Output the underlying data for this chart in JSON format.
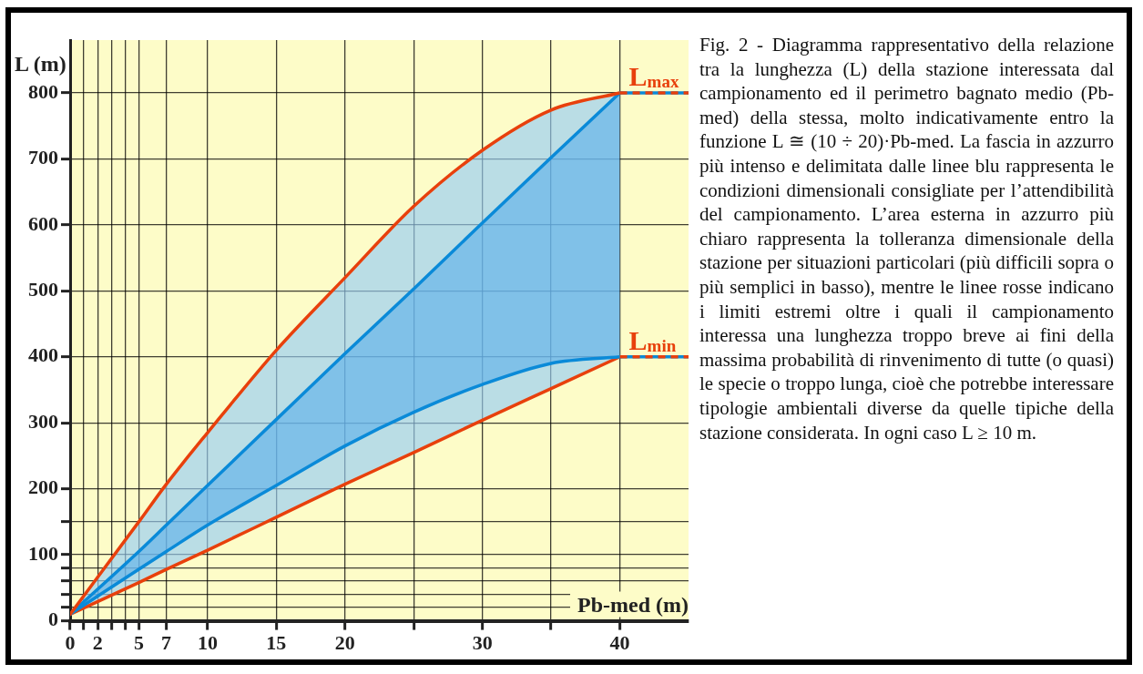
{
  "chart_data": {
    "type": "line",
    "xlabel": "Pb-med (m)",
    "ylabel": "L (m)",
    "xlim": [
      0,
      45
    ],
    "xticks": [
      0,
      {
        "value": 1,
        "label": null
      },
      2,
      {
        "value": 3,
        "label": null
      },
      {
        "value": 4,
        "label": null
      },
      5,
      7,
      10,
      15,
      20,
      {
        "value": 25,
        "label": null
      },
      30,
      {
        "value": 35,
        "label": null
      },
      40
    ],
    "ylim": [
      0,
      880
    ],
    "yticks": [
      0,
      {
        "value": 20,
        "label": null
      },
      {
        "value": 40,
        "label": null
      },
      {
        "value": 60,
        "label": null
      },
      {
        "value": 80,
        "label": null
      },
      100,
      {
        "value": 150,
        "label": null
      },
      200,
      300,
      400,
      500,
      600,
      700,
      800
    ],
    "grid": true,
    "legend": false,
    "marker": "none",
    "x": [
      0,
      5,
      7,
      10,
      15,
      20,
      25,
      30,
      35,
      40
    ],
    "series": [
      {
        "color": "#e8400c",
        "values": [
          10,
          150,
          207,
          285,
          410,
          520,
          628,
          713,
          774,
          800
        ]
      },
      {
        "color": "#0a8ad8",
        "values": [
          10,
          105,
          145,
          205,
          305,
          405,
          503,
          603,
          702,
          800
        ]
      },
      {
        "color": "#0a8ad8",
        "values": [
          10,
          78,
          105,
          145,
          205,
          265,
          316,
          358,
          390,
          400
        ]
      },
      {
        "color": "#e8400c",
        "values": [
          10,
          58,
          78,
          107,
          157,
          207,
          255,
          304,
          352,
          400
        ]
      }
    ],
    "ref_lines": [
      {
        "axis": "y",
        "value": 800,
        "label": "L$_{max}$",
        "color": "#e8400c",
        "line_style": "dashed"
      },
      {
        "axis": "y",
        "value": 400,
        "label": "L$_{min}$",
        "color": "#e8400c",
        "line_style": "dashed"
      }
    ],
    "annotations": [
      "Fig. 2 - Diagramma rappresentativo della relazione tra la lunghezza (L) della stazione interessata dal campionamento ed il perimetro bagnato medio (Pb-med) della stessa, molto indicativamente entro la funzione L ≅ (10 ÷ 20)·Pb-med. La fascia in azzurro più intenso e delimitata dalle linee blu rappresenta le condizioni dimensionali consigliate per l’attendibilità del campionamento. L’area esterna in azzurro più chiaro rappresenta la tolleranza dimensionale della stazione per situazioni particolari (più difficili sopra o più semplici in basso), mentre le linee rosse indicano i limiti estremi oltre i quali il campionamento interessa una lunghezza troppo breve ai fini della massima probabilità di rinvenimento di tutte (o quasi) le specie o troppo lunga, cioè che potrebbe interessare tipologie ambientali diverse da quelle tipiche della stazione considerata. In ogni caso L ≥ 10 m."
    ]
  }
}
